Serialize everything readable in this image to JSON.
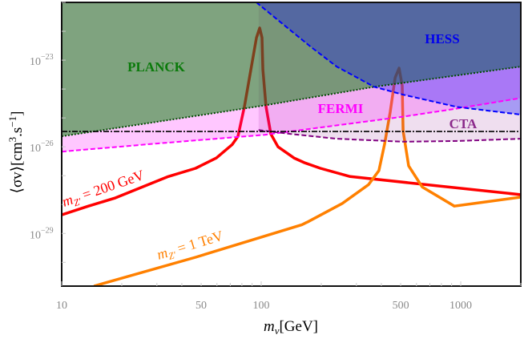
{
  "chart_data": {
    "type": "line",
    "xscale": "log",
    "yscale": "log",
    "xlim": [
      10,
      2000
    ],
    "ylim": [
      1.5e-31,
      1e-21
    ],
    "xlabel": {
      "var": "m",
      "sub": "ν",
      "unit": "[GeV]"
    },
    "ylabel": {
      "text": "⟨σv⟩[cm",
      "sup1": "3",
      "mid": ".s",
      "sup2": "−1",
      "end": "]"
    },
    "xticks": [
      {
        "value": 10,
        "label": "10"
      },
      {
        "value": 50,
        "label": "50"
      },
      {
        "value": 100,
        "label": "100"
      },
      {
        "value": 500,
        "label": "500"
      },
      {
        "value": 1000,
        "label": "1000"
      }
    ],
    "yticks": [
      {
        "value": 1e-23,
        "base": "10",
        "exp": "−23"
      },
      {
        "value": 1e-26,
        "base": "10",
        "exp": "−26"
      },
      {
        "value": 1e-29,
        "base": "10",
        "exp": "−29"
      }
    ],
    "grid": false,
    "legend": "none",
    "regions": [
      {
        "name": "PLANCK",
        "fill": "#008000",
        "line": "#004d00",
        "style": "dotted",
        "boundary": [
          [
            10,
            2.3e-26
          ],
          [
            100,
            2.6e-25
          ],
          [
            370,
            1.2e-24
          ],
          [
            2000,
            6e-24
          ]
        ]
      },
      {
        "name": "FERMI",
        "fill": "#ff00ff",
        "line": "#ff00ff",
        "style": "dashed",
        "boundary": [
          [
            10,
            6.8e-27
          ],
          [
            30,
            1.3e-26
          ],
          [
            104,
            2.6e-26
          ],
          [
            514,
            1.1e-25
          ],
          [
            955,
            2.1e-25
          ],
          [
            2000,
            4.9e-25
          ]
        ]
      },
      {
        "name": "CTA",
        "fill": "#800080",
        "line": "#800080",
        "style": "dashed",
        "boundary": [
          [
            97,
            3.8e-26
          ],
          [
            140,
            2.8e-26
          ],
          [
            239,
            1.9e-26
          ],
          [
            514,
            1.5e-26
          ],
          [
            1000,
            1.6e-26
          ],
          [
            2000,
            1.9e-26
          ]
        ]
      },
      {
        "name": "HESS",
        "fill": "#0000ff",
        "line": "#0000ff",
        "style": "dashed",
        "boundary": [
          [
            94.6,
            1e-21
          ],
          [
            128,
            1.8e-22
          ],
          [
            176,
            3e-23
          ],
          [
            239,
            6e-24
          ],
          [
            368,
            1.2e-24
          ],
          [
            514,
            6.4e-25
          ],
          [
            955,
            2.4e-25
          ],
          [
            2000,
            1.3e-25
          ]
        ]
      }
    ],
    "reference_line": {
      "value": 3.4e-26,
      "color": "#000000",
      "style": "dash-dot"
    },
    "series": [
      {
        "label": {
          "var": "m",
          "sub": "Z′",
          "value": " = 200 GeV"
        },
        "color": "#ff0000",
        "points": [
          [
            10,
            4.4e-29
          ],
          [
            13.6,
            8.8e-29
          ],
          [
            18.6,
            1.7e-28
          ],
          [
            34.2,
            9.3e-28
          ],
          [
            46.9,
            1.8e-27
          ],
          [
            59.6,
            4.1e-27
          ],
          [
            71.6,
            1.2e-26
          ],
          [
            76.5,
            2.3e-26
          ],
          [
            82.4,
            2.5e-25
          ],
          [
            88.7,
            4.7e-24
          ],
          [
            94.7,
            6e-23
          ],
          [
            98.2,
            1.3e-22
          ],
          [
            100.9,
            6e-23
          ],
          [
            101.9,
            4.7e-24
          ],
          [
            105.7,
            2.5e-25
          ],
          [
            111.7,
            2.8e-26
          ],
          [
            121.4,
            1e-26
          ],
          [
            146,
            4.1e-27
          ],
          [
            165,
            2.8e-27
          ],
          [
            198,
            1.8e-27
          ],
          [
            279,
            9.3e-28
          ],
          [
            2000,
            2.2e-28
          ]
        ]
      },
      {
        "label": {
          "var": "m",
          "sub": "Z′",
          "value": " = 1 TeV"
        },
        "color": "#ff8000",
        "points": [
          [
            14.5,
            1.5e-31
          ],
          [
            46.9,
            1.5e-30
          ],
          [
            160,
            2e-29
          ],
          [
            171,
            2.5e-29
          ],
          [
            255,
            1.1e-28
          ],
          [
            345,
            4.9e-28
          ],
          [
            389,
            1.5e-27
          ],
          [
            415,
            1.2e-26
          ],
          [
            443,
            1.6e-25
          ],
          [
            469,
            2.5e-24
          ],
          [
            491,
            5.3e-24
          ],
          [
            509,
            1.3e-24
          ],
          [
            514,
            3.6e-26
          ],
          [
            548,
            2.2e-27
          ],
          [
            641,
            4.1e-28
          ],
          [
            929,
            8.8e-29
          ],
          [
            2000,
            1.8e-28
          ]
        ]
      }
    ]
  }
}
